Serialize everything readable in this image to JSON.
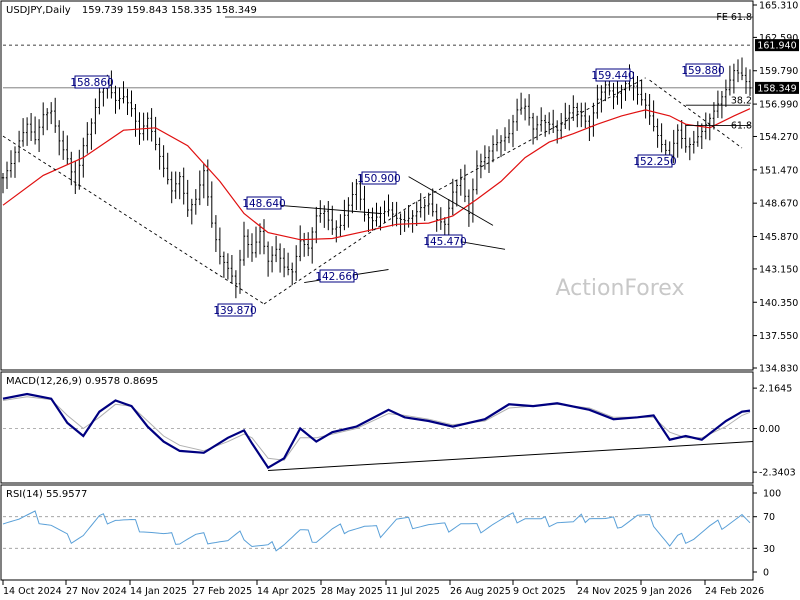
{
  "header": {
    "symbol": "USDJPY,Daily",
    "ohlc": "159.739 159.843 158.335 158.349"
  },
  "watermark": "ActionForex",
  "chart_data": {
    "type": "candlestick",
    "title": "USDJPY,Daily",
    "price_axis": {
      "ticks": [
        165.31,
        162.59,
        159.79,
        156.99,
        154.27,
        151.47,
        148.67,
        145.87,
        143.15,
        140.35,
        137.55,
        134.83
      ],
      "tick_labels": [
        "165.310",
        "162.590",
        "159.790",
        "156.990",
        "154.270",
        "151.470",
        "148.670",
        "145.870",
        "143.150",
        "140.350",
        "137.550",
        "134.830"
      ],
      "ylim": [
        134.83,
        165.31
      ]
    },
    "price_tags": [
      {
        "value": 161.94,
        "label": "161.940"
      },
      {
        "value": 158.349,
        "label": "158.349"
      }
    ],
    "fib_labels": [
      {
        "label": "FE 61.8",
        "value": 164.3
      },
      {
        "label": "38.2",
        "value": 157.3
      },
      {
        "label": "61.8",
        "value": 155.2
      }
    ],
    "x_labels": [
      "14 Oct 2024",
      "27 Nov 2024",
      "14 Jan 2025",
      "27 Feb 2025",
      "14 Apr 2025",
      "28 May 2025",
      "11 Jul 2025",
      "26 Aug 2025",
      "9 Oct 2025",
      "24 Nov 2025",
      "9 Jan 2026",
      "24 Feb 2026"
    ],
    "annotations": [
      {
        "label": "158.860",
        "value": 158.86
      },
      {
        "label": "148.640",
        "value": 148.64
      },
      {
        "label": "139.870",
        "value": 139.87
      },
      {
        "label": "142.660",
        "value": 142.66
      },
      {
        "label": "150.900",
        "value": 150.9
      },
      {
        "label": "145.470",
        "value": 145.47
      },
      {
        "label": "159.440",
        "value": 159.44
      },
      {
        "label": "152.250",
        "value": 152.25
      },
      {
        "label": "159.880",
        "value": 159.88
      }
    ],
    "price_path": [
      [
        0,
        150.8
      ],
      [
        2,
        152.0
      ],
      [
        4,
        153.9
      ],
      [
        6,
        155.3
      ],
      [
        8,
        154.0
      ],
      [
        10,
        156.1
      ],
      [
        12,
        156.4
      ],
      [
        14,
        153.9
      ],
      [
        16,
        152.4
      ],
      [
        18,
        150.2
      ],
      [
        20,
        153.5
      ],
      [
        22,
        155.4
      ],
      [
        24,
        158.0
      ],
      [
        26,
        158.6
      ],
      [
        28,
        157.3
      ],
      [
        30,
        157.6
      ],
      [
        32,
        156.6
      ],
      [
        34,
        154.5
      ],
      [
        36,
        155.8
      ],
      [
        38,
        153.6
      ],
      [
        40,
        151.6
      ],
      [
        42,
        149.7
      ],
      [
        44,
        150.9
      ],
      [
        46,
        148.1
      ],
      [
        48,
        149.0
      ],
      [
        50,
        151.4
      ],
      [
        52,
        147.0
      ],
      [
        54,
        144.2
      ],
      [
        56,
        143.2
      ],
      [
        58,
        141.9
      ],
      [
        60,
        145.9
      ],
      [
        62,
        144.5
      ],
      [
        64,
        146.3
      ],
      [
        66,
        143.8
      ],
      [
        68,
        144.8
      ],
      [
        70,
        143.3
      ],
      [
        72,
        142.9
      ],
      [
        74,
        145.5
      ],
      [
        76,
        144.9
      ],
      [
        78,
        147.6
      ],
      [
        80,
        148.0
      ],
      [
        82,
        146.5
      ],
      [
        84,
        146.8
      ],
      [
        86,
        148.5
      ],
      [
        88,
        150.3
      ],
      [
        90,
        147.7
      ],
      [
        92,
        147.2
      ],
      [
        94,
        147.8
      ],
      [
        96,
        148.1
      ],
      [
        98,
        147.4
      ],
      [
        100,
        147.2
      ],
      [
        102,
        147.6
      ],
      [
        104,
        148.3
      ],
      [
        106,
        148.6
      ],
      [
        108,
        147.3
      ],
      [
        110,
        146.9
      ],
      [
        112,
        149.6
      ],
      [
        114,
        150.7
      ],
      [
        116,
        147.8
      ],
      [
        118,
        151.8
      ],
      [
        120,
        152.5
      ],
      [
        122,
        153.6
      ],
      [
        124,
        153.9
      ],
      [
        126,
        154.5
      ],
      [
        128,
        156.5
      ],
      [
        130,
        156.8
      ],
      [
        132,
        154.9
      ],
      [
        134,
        155.6
      ],
      [
        136,
        155.3
      ],
      [
        138,
        154.8
      ],
      [
        140,
        155.8
      ],
      [
        142,
        156.7
      ],
      [
        144,
        156.0
      ],
      [
        146,
        155.1
      ],
      [
        148,
        157.4
      ],
      [
        150,
        158.6
      ],
      [
        152,
        157.6
      ],
      [
        154,
        158.2
      ],
      [
        156,
        159.2
      ],
      [
        158,
        157.8
      ],
      [
        160,
        156.9
      ],
      [
        162,
        155.1
      ],
      [
        164,
        153.6
      ],
      [
        166,
        152.6
      ],
      [
        168,
        154.8
      ],
      [
        170,
        153.4
      ],
      [
        172,
        153.8
      ],
      [
        174,
        154.7
      ],
      [
        176,
        155.8
      ],
      [
        178,
        157.0
      ],
      [
        180,
        158.2
      ],
      [
        182,
        159.8
      ],
      [
        184,
        159.4
      ],
      [
        186,
        158.35
      ]
    ],
    "ma_path": [
      [
        0,
        148.5
      ],
      [
        10,
        151.0
      ],
      [
        20,
        152.5
      ],
      [
        30,
        154.8
      ],
      [
        38,
        155.0
      ],
      [
        46,
        153.5
      ],
      [
        54,
        150.5
      ],
      [
        60,
        147.8
      ],
      [
        66,
        146.2
      ],
      [
        74,
        145.6
      ],
      [
        82,
        145.7
      ],
      [
        90,
        146.3
      ],
      [
        98,
        146.9
      ],
      [
        106,
        147.0
      ],
      [
        112,
        147.6
      ],
      [
        118,
        149.0
      ],
      [
        124,
        150.5
      ],
      [
        130,
        152.5
      ],
      [
        136,
        153.8
      ],
      [
        142,
        154.5
      ],
      [
        148,
        155.3
      ],
      [
        154,
        156.0
      ],
      [
        160,
        156.5
      ],
      [
        166,
        156.0
      ],
      [
        170,
        155.3
      ],
      [
        176,
        155.0
      ],
      [
        182,
        156.0
      ],
      [
        186,
        156.6
      ]
    ],
    "trendlines": [
      {
        "from": [
          0,
          154.3
        ],
        "to": [
          65,
          140.2
        ],
        "dashed": true
      },
      {
        "from": [
          65,
          140.2
        ],
        "to": [
          102,
          148.6
        ],
        "dashed": true
      },
      {
        "from": [
          102,
          148.6
        ],
        "to": [
          160,
          159.2
        ],
        "dashed": true
      },
      {
        "from": [
          161,
          159.0
        ],
        "to": [
          184,
          153.3
        ],
        "dashed": true
      },
      {
        "from": [
          61,
          148.7
        ],
        "to": [
          94,
          147.8
        ],
        "dashed": false
      },
      {
        "from": [
          75,
          142.0
        ],
        "to": [
          96,
          143.1
        ],
        "dashed": false
      },
      {
        "from": [
          101,
          150.9
        ],
        "to": [
          122,
          146.8
        ],
        "dashed": false
      },
      {
        "from": [
          106,
          145.9
        ],
        "to": [
          125,
          144.8
        ],
        "dashed": false
      },
      {
        "from": [
          170,
          156.9
        ],
        "to": [
          186,
          156.9
        ],
        "dashed": false
      },
      {
        "from": [
          170,
          155.2
        ],
        "to": [
          186,
          155.2
        ],
        "dashed": false
      }
    ],
    "macd": {
      "label": "MACD(12,26,9) 0.9578 0.8695",
      "ticks": [
        2.1645,
        0.0,
        -2.3403
      ],
      "tick_labels": [
        "2.1645",
        "0.00",
        "-2.3403"
      ],
      "ylim": [
        -2.6,
        2.6
      ],
      "main_path": [
        [
          0,
          1.6
        ],
        [
          6,
          1.85
        ],
        [
          12,
          1.6
        ],
        [
          16,
          0.3
        ],
        [
          20,
          -0.4
        ],
        [
          24,
          0.9
        ],
        [
          28,
          1.5
        ],
        [
          32,
          1.2
        ],
        [
          36,
          0.1
        ],
        [
          40,
          -0.7
        ],
        [
          44,
          -1.2
        ],
        [
          50,
          -1.3
        ],
        [
          56,
          -0.5
        ],
        [
          60,
          -0.1
        ],
        [
          62,
          -0.8
        ],
        [
          66,
          -2.1
        ],
        [
          70,
          -1.6
        ],
        [
          74,
          0.0
        ],
        [
          78,
          -0.7
        ],
        [
          82,
          -0.2
        ],
        [
          88,
          0.1
        ],
        [
          96,
          1.0
        ],
        [
          100,
          0.6
        ],
        [
          106,
          0.4
        ],
        [
          112,
          0.1
        ],
        [
          120,
          0.5
        ],
        [
          126,
          1.3
        ],
        [
          132,
          1.2
        ],
        [
          138,
          1.35
        ],
        [
          146,
          1.0
        ],
        [
          152,
          0.5
        ],
        [
          158,
          0.6
        ],
        [
          162,
          0.7
        ],
        [
          166,
          -0.6
        ],
        [
          170,
          -0.4
        ],
        [
          174,
          -0.6
        ],
        [
          180,
          0.4
        ],
        [
          184,
          0.9
        ],
        [
          186,
          0.96
        ]
      ],
      "signal_path": [
        [
          0,
          1.5
        ],
        [
          6,
          1.7
        ],
        [
          12,
          1.55
        ],
        [
          16,
          0.7
        ],
        [
          20,
          0.0
        ],
        [
          24,
          0.6
        ],
        [
          28,
          1.3
        ],
        [
          32,
          1.2
        ],
        [
          36,
          0.4
        ],
        [
          40,
          -0.4
        ],
        [
          44,
          -0.9
        ],
        [
          50,
          -1.2
        ],
        [
          56,
          -0.7
        ],
        [
          60,
          -0.3
        ],
        [
          62,
          -0.5
        ],
        [
          66,
          -1.6
        ],
        [
          70,
          -1.7
        ],
        [
          74,
          -0.5
        ],
        [
          78,
          -0.5
        ],
        [
          82,
          -0.3
        ],
        [
          88,
          0.0
        ],
        [
          96,
          0.8
        ],
        [
          100,
          0.7
        ],
        [
          106,
          0.5
        ],
        [
          112,
          0.2
        ],
        [
          120,
          0.4
        ],
        [
          126,
          1.1
        ],
        [
          132,
          1.2
        ],
        [
          138,
          1.3
        ],
        [
          146,
          1.1
        ],
        [
          152,
          0.6
        ],
        [
          158,
          0.6
        ],
        [
          162,
          0.6
        ],
        [
          166,
          -0.2
        ],
        [
          170,
          -0.5
        ],
        [
          174,
          -0.5
        ],
        [
          180,
          0.1
        ],
        [
          184,
          0.7
        ],
        [
          186,
          0.87
        ]
      ],
      "trendline": {
        "from": [
          66,
          -2.25
        ],
        "to": [
          186,
          -0.7
        ]
      }
    },
    "rsi": {
      "label": "RSI(14) 55.9577",
      "ticks": [
        100,
        70,
        30,
        0
      ],
      "tick_labels": [
        "100",
        "70",
        "30",
        "0"
      ],
      "levels": [
        70,
        30
      ],
      "ylim": [
        0,
        100
      ],
      "path": [
        [
          0,
          68
        ],
        [
          4,
          67
        ],
        [
          8,
          70
        ],
        [
          12,
          60
        ],
        [
          16,
          42
        ],
        [
          20,
          48
        ],
        [
          24,
          66
        ],
        [
          28,
          68
        ],
        [
          32,
          62
        ],
        [
          36,
          54
        ],
        [
          40,
          45
        ],
        [
          44,
          40
        ],
        [
          48,
          45
        ],
        [
          52,
          42
        ],
        [
          56,
          38
        ],
        [
          60,
          47
        ],
        [
          62,
          35
        ],
        [
          66,
          30
        ],
        [
          70,
          38
        ],
        [
          74,
          50
        ],
        [
          78,
          42
        ],
        [
          82,
          52
        ],
        [
          86,
          57
        ],
        [
          90,
          56
        ],
        [
          94,
          50
        ],
        [
          98,
          66
        ],
        [
          102,
          62
        ],
        [
          106,
          60
        ],
        [
          110,
          55
        ],
        [
          114,
          62
        ],
        [
          118,
          55
        ],
        [
          122,
          62
        ],
        [
          126,
          67
        ],
        [
          130,
          70
        ],
        [
          134,
          63
        ],
        [
          138,
          66
        ],
        [
          142,
          60
        ],
        [
          146,
          72
        ],
        [
          150,
          65
        ],
        [
          154,
          62
        ],
        [
          158,
          70
        ],
        [
          162,
          64
        ],
        [
          166,
          32
        ],
        [
          168,
          42
        ],
        [
          172,
          45
        ],
        [
          176,
          55
        ],
        [
          180,
          62
        ],
        [
          184,
          70
        ],
        [
          186,
          56
        ]
      ]
    }
  }
}
